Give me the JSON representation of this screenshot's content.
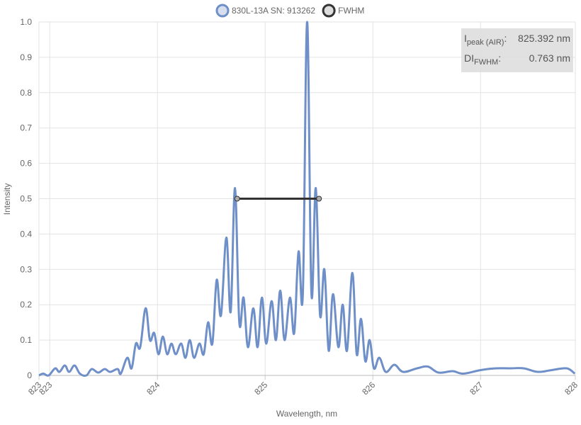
{
  "chart_data": {
    "type": "line",
    "x_label": "Wavelength, nm",
    "y_label": "Intensity",
    "xlim": [
      822.9,
      827.88
    ],
    "xticks": [
      {
        "value": 822.9,
        "label": "823"
      },
      823,
      824,
      825,
      826,
      827,
      {
        "value": 827.88,
        "label": "828"
      }
    ],
    "ylim": [
      0,
      1
    ],
    "yticks": [
      0,
      0.1,
      0.2,
      0.3,
      0.4,
      0.5,
      0.6,
      0.7,
      0.8,
      0.9,
      {
        "value": 1,
        "label": "1.0"
      }
    ],
    "grid": true,
    "legend": "top",
    "series": [
      {
        "name": "830L-13A SN: 913262",
        "color": "#6f8fc8",
        "x": [
          822.9,
          822.94,
          822.99,
          823.05,
          823.09,
          823.14,
          823.18,
          823.23,
          823.28,
          823.34,
          823.39,
          823.45,
          823.51,
          823.56,
          823.63,
          823.66,
          823.72,
          823.76,
          823.8,
          823.84,
          823.89,
          823.93,
          823.97,
          824.01,
          824.05,
          824.09,
          824.13,
          824.17,
          824.22,
          824.26,
          824.3,
          824.34,
          824.39,
          824.43,
          824.47,
          824.51,
          824.55,
          824.59,
          824.64,
          824.68,
          824.72,
          824.76,
          824.8,
          824.84,
          824.89,
          824.93,
          824.97,
          825.01,
          825.06,
          825.1,
          825.14,
          825.18,
          825.23,
          825.27,
          825.31,
          825.35,
          825.39,
          825.43,
          825.47,
          825.51,
          825.55,
          825.59,
          825.63,
          825.68,
          825.72,
          825.76,
          825.81,
          825.85,
          825.89,
          825.93,
          825.97,
          826.01,
          826.06,
          826.12,
          826.2,
          826.28,
          826.41,
          826.51,
          826.61,
          826.74,
          826.84,
          827.0,
          827.14,
          827.27,
          827.4,
          827.53,
          827.66,
          827.8,
          827.875
        ],
        "values": [
          0.0,
          0.005,
          0.0,
          0.02,
          0.01,
          0.028,
          0.01,
          0.028,
          0.005,
          0.0,
          0.018,
          0.008,
          0.018,
          0.01,
          0.018,
          0.005,
          0.05,
          0.02,
          0.09,
          0.08,
          0.19,
          0.1,
          0.12,
          0.06,
          0.11,
          0.06,
          0.09,
          0.06,
          0.09,
          0.05,
          0.1,
          0.05,
          0.09,
          0.06,
          0.15,
          0.09,
          0.27,
          0.17,
          0.39,
          0.18,
          0.53,
          0.15,
          0.22,
          0.08,
          0.19,
          0.08,
          0.22,
          0.09,
          0.21,
          0.1,
          0.24,
          0.1,
          0.22,
          0.12,
          0.35,
          0.23,
          1.0,
          0.23,
          0.53,
          0.17,
          0.3,
          0.07,
          0.23,
          0.08,
          0.2,
          0.07,
          0.29,
          0.06,
          0.16,
          0.04,
          0.1,
          0.02,
          0.05,
          0.01,
          0.03,
          0.01,
          0.02,
          0.025,
          0.008,
          0.012,
          0.005,
          0.015,
          0.02,
          0.02,
          0.02,
          0.01,
          0.015,
          0.02,
          0.005
        ]
      },
      {
        "name": "FWHM",
        "color": "#333333",
        "x": [
          824.74,
          825.5
        ],
        "values": [
          0.5,
          0.5
        ]
      }
    ],
    "annotation": [
      {
        "label": "I",
        "sub": "peak (AIR)",
        "suffix": ":",
        "value": "825.392 nm"
      },
      {
        "label": "DI",
        "sub": "FWHM",
        "suffix": ":",
        "value": "0.763 nm"
      }
    ]
  }
}
